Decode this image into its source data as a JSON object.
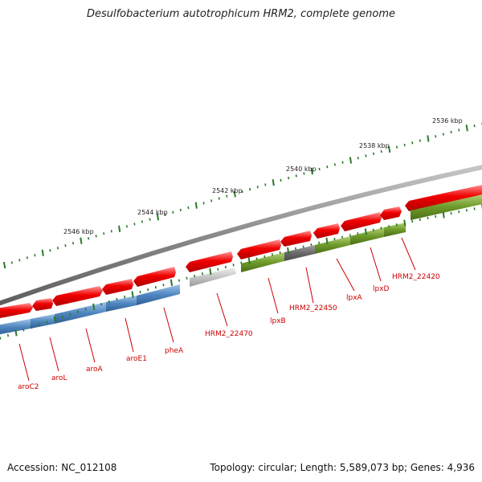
{
  "title": "Desulfobacterium autotrophicum HRM2, complete genome",
  "footer": {
    "accession": "Accession: NC_012108",
    "summary": "Topology: circular; Length: 5,589,073 bp; Genes: 4,936"
  },
  "colors": {
    "forward_gene": "#e60000",
    "reverse_blue": "#4f86c0",
    "reverse_green": "#6e9a2a",
    "reverse_dark": "#666666",
    "reverse_grey": "#b8b8b8",
    "backbone": "#8a8a8a",
    "ticks": "#2a7a2a",
    "label_text": "#cc0000"
  },
  "axis": {
    "unit": "kbp",
    "tick_labels": [
      {
        "kbp": 2536,
        "text": "2536 kbp"
      },
      {
        "kbp": 2538,
        "text": "2538 kbp"
      },
      {
        "kbp": 2540,
        "text": "2540 kbp"
      },
      {
        "kbp": 2542,
        "text": "2542 kbp"
      },
      {
        "kbp": 2544,
        "text": "2544 kbp"
      },
      {
        "kbp": 2546,
        "text": "2546 kbp"
      }
    ]
  },
  "genes": [
    {
      "name": "aroC2",
      "strand": "rev",
      "color": "blue"
    },
    {
      "name": "aroL",
      "strand": "rev",
      "color": "blue"
    },
    {
      "name": "aroA",
      "strand": "rev",
      "color": "blue"
    },
    {
      "name": "aroE1",
      "strand": "rev",
      "color": "blue"
    },
    {
      "name": "pheA",
      "strand": "rev",
      "color": "blue"
    },
    {
      "name": "HRM2_22470",
      "strand": "rev",
      "color": "grey"
    },
    {
      "name": "lpxB",
      "strand": "rev",
      "color": "green"
    },
    {
      "name": "HRM2_22450",
      "strand": "rev",
      "color": "dark"
    },
    {
      "name": "lpxA",
      "strand": "rev",
      "color": "green"
    },
    {
      "name": "lpxD",
      "strand": "rev",
      "color": "green"
    },
    {
      "name": "HRM2_22420",
      "strand": "rev",
      "color": "green"
    }
  ]
}
